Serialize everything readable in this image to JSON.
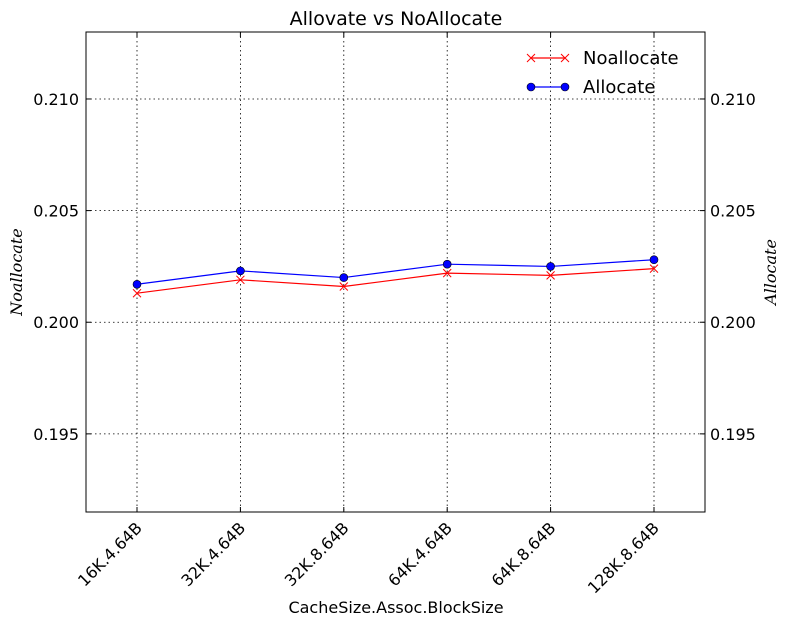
{
  "chart_data": {
    "type": "line",
    "title": "Allovate vs NoAllocate",
    "xlabel": "CacheSize.Assoc.BlockSize",
    "ylabel_left": "Noallocate",
    "ylabel_right": "Allocate",
    "categories": [
      "16K.4.64B",
      "32K.4.64B",
      "32K.8.64B",
      "64K.4.64B",
      "64K.8.64B",
      "128K.8.64B"
    ],
    "ylim": [
      0.1915,
      0.213
    ],
    "yticks": [
      "0.195",
      "0.200",
      "0.205",
      "0.210"
    ],
    "grid": true,
    "legend_position": "top-right",
    "series": [
      {
        "name": "Noallocate",
        "color": "#ff0000",
        "marker": "x",
        "values": [
          0.2013,
          0.2019,
          0.2016,
          0.2022,
          0.2021,
          0.2024
        ]
      },
      {
        "name": "Allocate",
        "color": "#0000ff",
        "marker": "o",
        "values": [
          0.2017,
          0.2023,
          0.202,
          0.2026,
          0.2025,
          0.2028
        ]
      }
    ]
  }
}
